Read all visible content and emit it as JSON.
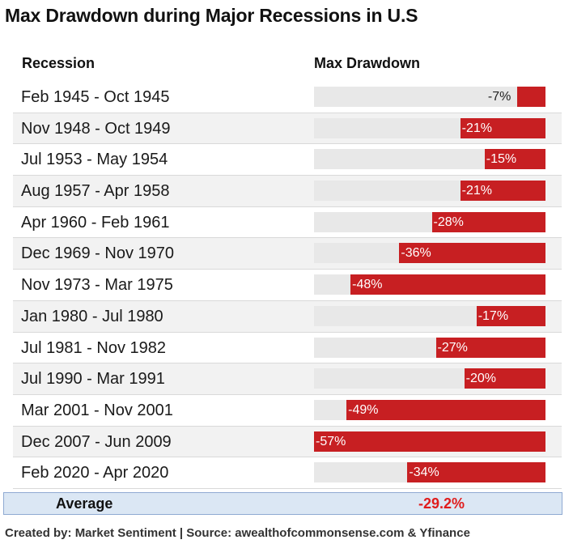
{
  "title": "Max Drawdown during Major Recessions in U.S",
  "headers": {
    "recession": "Recession",
    "drawdown": "Max Drawdown"
  },
  "average": {
    "label": "Average",
    "value": "-29.2%"
  },
  "footer": "Created by: Market Sentiment | Source: awealthofcommonsense.com & Yfinance",
  "colors": {
    "bar": "#c71f22",
    "track": "#e8e8e8",
    "average_value": "#e01c1c",
    "average_bg": "#dbe7f4"
  },
  "chart_data": {
    "type": "bar",
    "orientation": "horizontal",
    "categories": [
      "Feb 1945 - Oct 1945",
      "Nov 1948 - Oct 1949",
      "Jul 1953 - May 1954",
      "Aug 1957 - Apr 1958",
      "Apr 1960 - Feb 1961",
      "Dec 1969 - Nov 1970",
      "Nov 1973 - Mar 1975",
      "Jan 1980 - Jul 1980",
      "Jul 1981 - Nov 1982",
      "Jul 1990 - Mar 1991",
      "Mar 2001 - Nov 2001",
      "Dec 2007 - Jun 2009",
      "Feb 2020 - Apr 2020"
    ],
    "values": [
      -7,
      -21,
      -15,
      -21,
      -28,
      -36,
      -48,
      -17,
      -27,
      -20,
      -49,
      -57,
      -34
    ],
    "labels": [
      "-7%",
      "-21%",
      "-15%",
      "-21%",
      "-28%",
      "-36%",
      "-48%",
      "-17%",
      "-27%",
      "-20%",
      "-49%",
      "-57%",
      "-34%"
    ],
    "xlim": [
      -57,
      0
    ]
  }
}
